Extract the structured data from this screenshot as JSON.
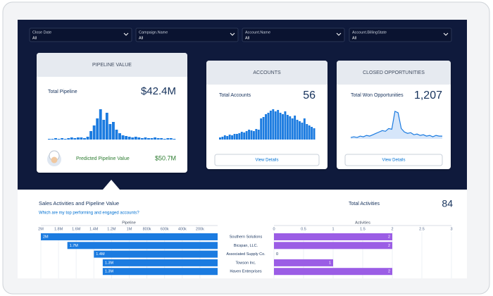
{
  "filters": [
    {
      "label": "Close Date",
      "value": "All"
    },
    {
      "label": "Campaign.Name",
      "value": "All"
    },
    {
      "label": "Account.Name",
      "value": "All"
    },
    {
      "label": "Account.BillingState",
      "value": "All"
    }
  ],
  "cards": [
    {
      "title": "PIPELINE VALUE",
      "metric_label": "Total Pipeline",
      "metric_value": "$42.4M",
      "sparkline": {
        "type": "bar",
        "color": "#1b7be0",
        "values": [
          1,
          1,
          2,
          1,
          2,
          1,
          2,
          3,
          2,
          3,
          3,
          2,
          4,
          12,
          20,
          30,
          43,
          28,
          38,
          22,
          25,
          14,
          9,
          6,
          5,
          4,
          3,
          4,
          3,
          2,
          3,
          2,
          2,
          3,
          2,
          2,
          1,
          2,
          2,
          1
        ]
      },
      "prediction_label": "Predicted Pipeline Value",
      "prediction_value": "$50.7M"
    },
    {
      "title": "ACCOUNTS",
      "metric_label": "Total Accounts",
      "metric_value": "56",
      "sparkline": {
        "type": "bar",
        "color": "#1b7be0",
        "values": [
          3,
          4,
          6,
          5,
          7,
          6,
          8,
          8,
          9,
          11,
          10,
          12,
          14,
          13,
          12,
          15,
          14,
          30,
          32,
          36,
          38,
          41,
          43,
          40,
          42,
          38,
          36,
          40,
          35,
          33,
          30,
          34,
          28,
          26,
          24,
          30,
          22,
          20,
          18,
          16
        ]
      },
      "button": "View Details"
    },
    {
      "title": "CLOSED OPPORTUNITIES",
      "metric_label": "Total Won Opportunities",
      "metric_value": "1,207",
      "sparkline": {
        "type": "area",
        "color": "#1b7be0",
        "values": [
          2,
          3,
          2,
          4,
          3,
          5,
          4,
          6,
          8,
          10,
          12,
          11,
          15,
          14,
          40,
          38,
          15,
          10,
          8,
          9,
          6,
          7,
          5,
          6,
          4,
          5,
          3,
          5,
          4,
          4
        ]
      },
      "button": "View Details"
    }
  ],
  "section": {
    "title": "Sales Activities and Pipeline Value",
    "link": "Which are my top performing and engaged accounts?",
    "total_label": "Total Activities",
    "total_value": "84"
  },
  "chart_data": [
    {
      "type": "bar",
      "orientation": "horizontal",
      "title": "Pipeline",
      "categories": [
        "Southern Solutions",
        "Bicspan, LLC.",
        "Associated Supply Co.",
        "Towson Inc.",
        "Haven Enterprises"
      ],
      "values": [
        2000000,
        1700000,
        1400000,
        1300000,
        1300000
      ],
      "value_labels": [
        "2M",
        "1.7M",
        "1.4M",
        "1.3M",
        "1.3M"
      ],
      "color": "#1b7be0",
      "xlim": [
        0,
        2000000
      ],
      "x_reversed": true,
      "xticks": [
        {
          "value": 2000000,
          "label": "2M"
        },
        {
          "value": 1800000,
          "label": "1.8M"
        },
        {
          "value": 1600000,
          "label": "1.6M"
        },
        {
          "value": 1400000,
          "label": "1.4M"
        },
        {
          "value": 1200000,
          "label": "1.2M"
        },
        {
          "value": 1000000,
          "label": "1M"
        },
        {
          "value": 800000,
          "label": "800k"
        },
        {
          "value": 600000,
          "label": "600k"
        },
        {
          "value": 400000,
          "label": "400k"
        },
        {
          "value": 200000,
          "label": "200k"
        }
      ],
      "grid": true
    },
    {
      "type": "bar",
      "orientation": "horizontal",
      "title": "Activities",
      "values": [
        2,
        2,
        0,
        1,
        2
      ],
      "color": "#9b5de5",
      "xlim": [
        0,
        3
      ],
      "x_reversed": false,
      "xticks": [
        0,
        0.5,
        1,
        1.5,
        2,
        2.5,
        3
      ],
      "grid": true
    }
  ]
}
